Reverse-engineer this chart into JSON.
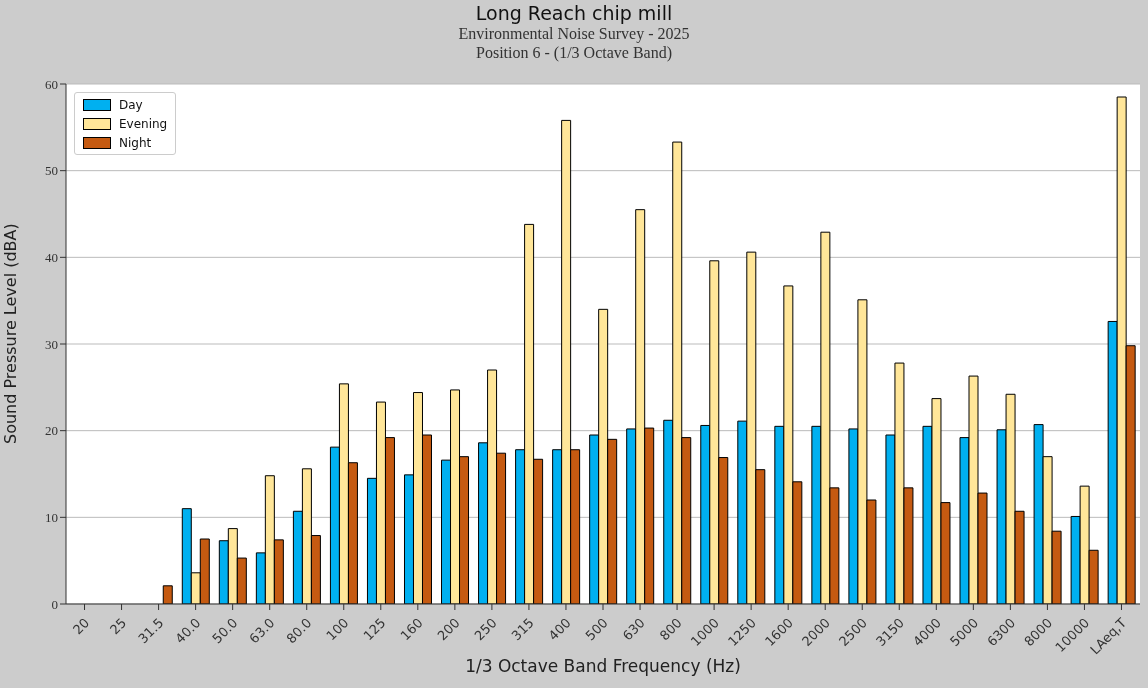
{
  "chart_data": {
    "type": "bar",
    "title": "Long Reach chip mill",
    "subtitle": "Environmental Noise Survey - 2025\nPosition 6 - (1/3 Octave Band)",
    "xlabel": "1/3 Octave Band Frequency (Hz)",
    "ylabel": "Sound Pressure Level (dBA)",
    "categories": [
      "20",
      "25",
      "31.5",
      "40.0",
      "50.0",
      "63.0",
      "80.0",
      "100",
      "125",
      "160",
      "200",
      "250",
      "315",
      "400",
      "500",
      "630",
      "800",
      "1000",
      "1250",
      "1600",
      "2000",
      "2500",
      "3150",
      "4000",
      "5000",
      "6300",
      "8000",
      "10000",
      "LAeq,T"
    ],
    "series": [
      {
        "name": "Day",
        "color": "#00b0f0",
        "values": [
          null,
          null,
          null,
          11.0,
          7.3,
          5.9,
          10.7,
          18.1,
          14.5,
          14.9,
          16.6,
          18.6,
          17.8,
          17.8,
          19.5,
          20.2,
          21.2,
          20.6,
          21.1,
          20.5,
          20.5,
          20.2,
          19.5,
          20.5,
          19.2,
          20.1,
          20.7,
          10.1,
          32.6
        ]
      },
      {
        "name": "Evening",
        "color": "#ffe699",
        "values": [
          null,
          null,
          null,
          3.6,
          8.7,
          14.8,
          15.6,
          25.4,
          23.3,
          24.4,
          24.7,
          27.0,
          43.8,
          55.8,
          34.0,
          45.5,
          53.3,
          39.6,
          40.6,
          36.7,
          42.9,
          35.1,
          27.8,
          23.7,
          26.3,
          24.2,
          17.0,
          13.6,
          58.5
        ]
      },
      {
        "name": "Night",
        "color": "#c55a11",
        "values": [
          null,
          null,
          2.1,
          7.5,
          5.3,
          7.4,
          7.9,
          16.3,
          19.2,
          19.5,
          17.0,
          17.4,
          16.7,
          17.8,
          19.0,
          20.3,
          19.2,
          16.9,
          15.5,
          14.1,
          13.4,
          12.0,
          13.4,
          11.7,
          12.8,
          10.7,
          8.4,
          6.2,
          29.8
        ]
      }
    ],
    "ylim": [
      0,
      60
    ],
    "yticks": [
      0,
      10,
      20,
      30,
      40,
      50,
      60
    ],
    "grid": "y",
    "legend": "top left"
  }
}
